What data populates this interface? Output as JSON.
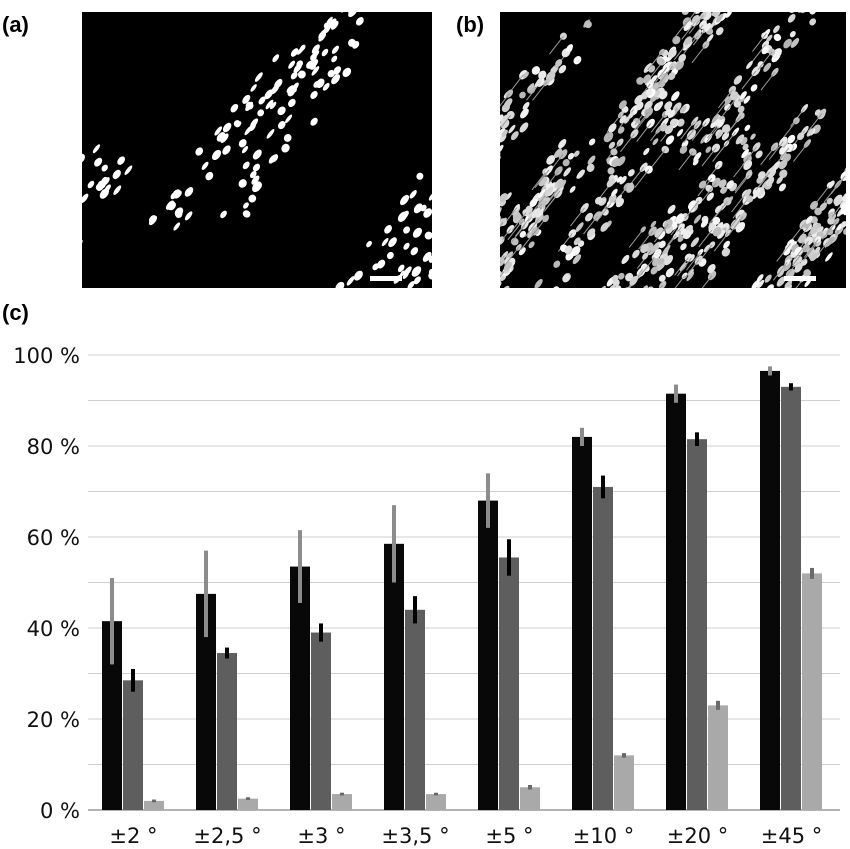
{
  "panels": {
    "a": "(a)",
    "b": "(b)",
    "c": "(c)"
  },
  "colors": {
    "series1": "#080808",
    "series2": "#5e5e5e",
    "series3": "#a9a9a9",
    "error1": "#8c8c8c",
    "error2": "#000000",
    "error3": "#6a6a6a",
    "grid": "#cfcfcf"
  },
  "chart_data": {
    "type": "bar",
    "categories": [
      "±2 °",
      "±2,5 °",
      "±3 °",
      "±3,5 °",
      "±5 °",
      "±10 °",
      "±20 °",
      "±45 °"
    ],
    "series": [
      {
        "values": [
          41.5,
          47.5,
          53.5,
          58.5,
          68,
          82,
          91.5,
          96.5
        ],
        "errors": [
          9.5,
          9.5,
          8,
          8.5,
          6,
          2,
          2,
          1
        ]
      },
      {
        "values": [
          28.5,
          34.5,
          39,
          44,
          55.5,
          71,
          81.5,
          93
        ],
        "errors": [
          2.5,
          1.2,
          2,
          3,
          4,
          2.5,
          1.5,
          0.8
        ]
      },
      {
        "values": [
          2,
          2.5,
          3.5,
          3.5,
          5,
          12,
          23,
          52
        ],
        "errors": [
          0.3,
          0.3,
          0.3,
          0.3,
          0.5,
          0.5,
          1,
          1.2
        ]
      }
    ],
    "ylim": [
      0,
      100
    ],
    "yticks": [
      "0 %",
      "20 %",
      "40 %",
      "60 %",
      "80 %",
      "100 %"
    ],
    "grid": true,
    "gridlines_every": 10
  }
}
